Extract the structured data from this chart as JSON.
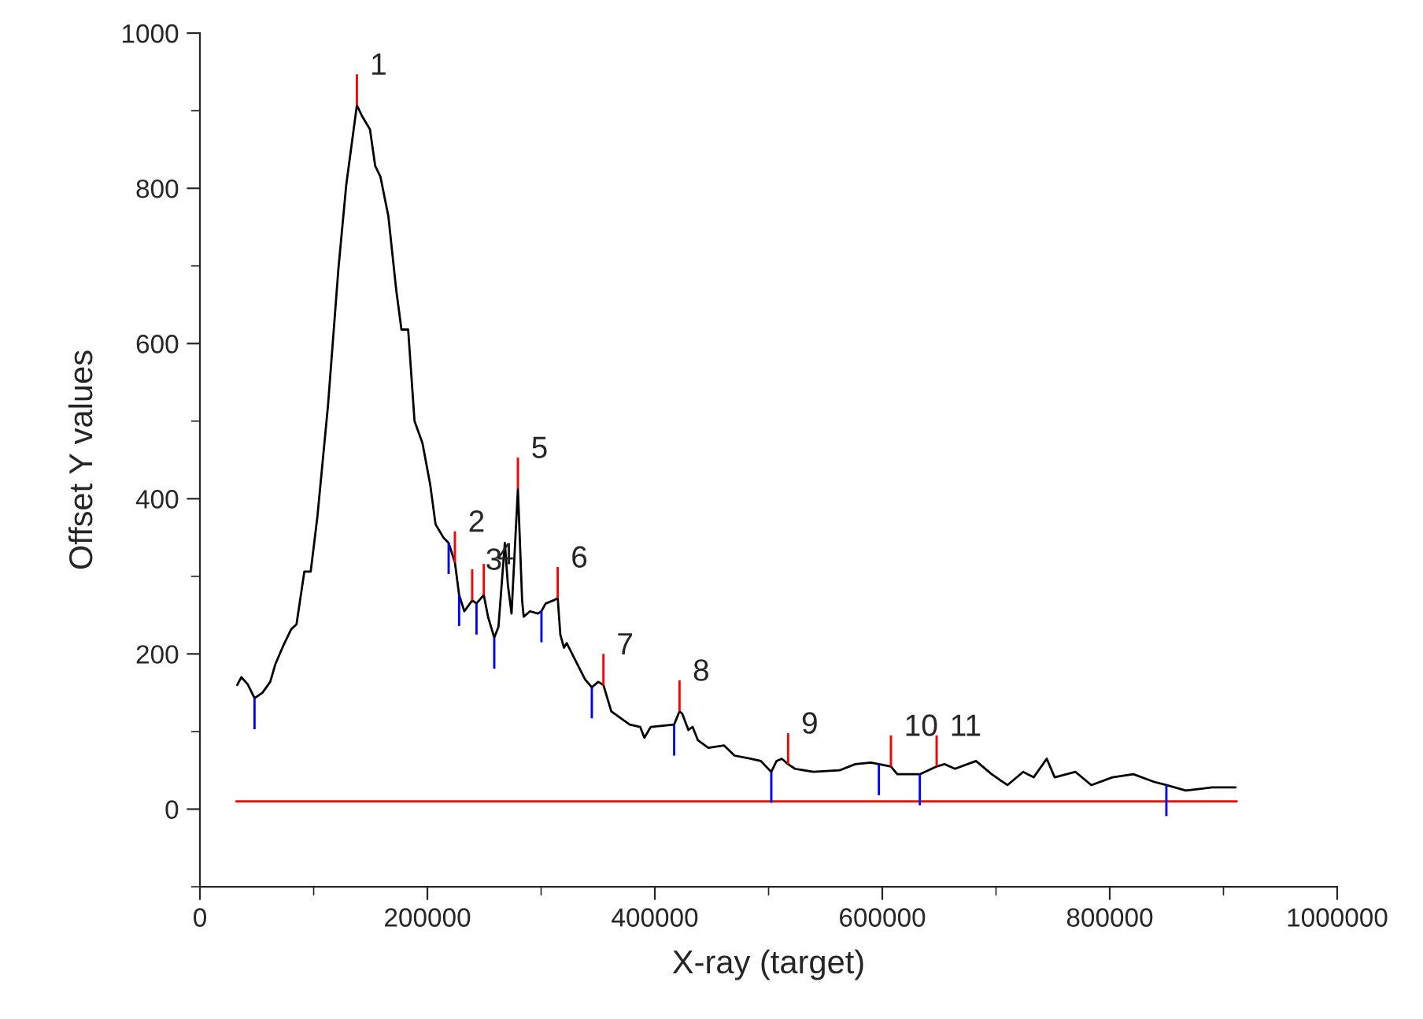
{
  "chart_data": {
    "type": "line",
    "xlabel": "X-ray (target)",
    "ylabel": "Offset Y values",
    "xlim": [
      0,
      1000000
    ],
    "xticks": [
      0,
      200000,
      400000,
      600000,
      800000,
      1000000
    ],
    "ylim": [
      -100,
      1000
    ],
    "yticks": [
      0,
      200,
      400,
      600,
      800,
      1000
    ],
    "grid": false,
    "legend": false,
    "series": [
      {
        "color": "#000000",
        "x": [
          32800,
          36400,
          42000,
          48000,
          55000,
          61800,
          66400,
          73400,
          80300,
          84900,
          91800,
          97400,
          103300,
          112600,
          121800,
          128700,
          138000,
          142600,
          149500,
          154100,
          158700,
          165700,
          172600,
          177200,
          183100,
          188700,
          195600,
          202500,
          207200,
          214100,
          218700,
          224200,
          227900,
          232500,
          239400,
          243200,
          249600,
          253300,
          258800,
          262500,
          268100,
          270800,
          274000,
          279600,
          283300,
          284700,
          290200,
          297100,
          300300,
          304000,
          310900,
          314600,
          316900,
          320100,
          322500,
          329400,
          338700,
          344600,
          350200,
          354800,
          361700,
          377900,
          387100,
          390800,
          396400,
          417000,
          421700,
          424100,
          429500,
          433200,
          437800,
          447000,
          460900,
          470100,
          484000,
          493200,
          502400,
          507000,
          511600,
          517200,
          523200,
          539400,
          562400,
          576200,
          590000,
          597000,
          607600,
          613200,
          627000,
          633000,
          647800,
          654700,
          663900,
          682400,
          696200,
          710000,
          723900,
          733100,
          744600,
          751600,
          769900,
          783800,
          802300,
          820800,
          839200,
          849800,
          866900,
          890000,
          910700
        ],
        "values": [
          160,
          170,
          161,
          143,
          150,
          164,
          187,
          211,
          232,
          238,
          306,
          306,
          377,
          520,
          697,
          805,
          907,
          893,
          876,
          829,
          815,
          764,
          669,
          618,
          618,
          500,
          472,
          418,
          367,
          350,
          343,
          318,
          276,
          255,
          269,
          265,
          276,
          248,
          221,
          235,
          343,
          289,
          252,
          413,
          269,
          248,
          255,
          252,
          255,
          265,
          269,
          272,
          225,
          208,
          214,
          194,
          167,
          157,
          164,
          160,
          126,
          109,
          106,
          92,
          106,
          109,
          126,
          123,
          102,
          106,
          89,
          79,
          82,
          69,
          65,
          62,
          48,
          62,
          65,
          58,
          52,
          48,
          50,
          58,
          60,
          58,
          55,
          45,
          45,
          45,
          55,
          58,
          52,
          62,
          45,
          31,
          48,
          41,
          65,
          41,
          48,
          31,
          41,
          45,
          35,
          31,
          24,
          28,
          28
        ]
      },
      {
        "type": "line",
        "color": "#ff0000",
        "x": [
          32000,
          911700
        ],
        "values": [
          10,
          10
        ]
      },
      {
        "type": "bar",
        "color": "#ff0000",
        "x": [
          138000,
          224200,
          239400,
          249600,
          279600,
          314600,
          354800,
          421700,
          517200,
          607600,
          647800
        ],
        "base": [
          907,
          318,
          269,
          276,
          413,
          272,
          160,
          126,
          58,
          55,
          55
        ],
        "values": [
          40,
          40,
          40,
          40,
          40,
          40,
          40,
          40,
          40,
          40,
          40
        ]
      },
      {
        "type": "bar",
        "color": "#0000ff",
        "x": [
          48000,
          218700,
          227900,
          243200,
          258800,
          300300,
          344600,
          417000,
          502400,
          597000,
          633000,
          849800
        ],
        "base": [
          143,
          343,
          276,
          265,
          221,
          255,
          157,
          109,
          48,
          58,
          45,
          31
        ],
        "values": [
          -40,
          -40,
          -40,
          -40,
          -40,
          -40,
          -40,
          -40,
          -40,
          -40,
          -40,
          -40
        ]
      }
    ],
    "annotations": [
      {
        "text": "1",
        "x": 138000,
        "y": 907
      },
      {
        "text": "2",
        "x": 224200,
        "y": 318
      },
      {
        "text": "3",
        "x": 239400,
        "y": 269
      },
      {
        "text": "4",
        "x": 249600,
        "y": 276
      },
      {
        "text": "5",
        "x": 279600,
        "y": 413
      },
      {
        "text": "6",
        "x": 314600,
        "y": 272
      },
      {
        "text": "7",
        "x": 354800,
        "y": 160
      },
      {
        "text": "8",
        "x": 421700,
        "y": 126
      },
      {
        "text": "9",
        "x": 517200,
        "y": 58
      },
      {
        "text": "10",
        "x": 607600,
        "y": 55
      },
      {
        "text": "11",
        "x": 647800,
        "y": 55
      }
    ]
  }
}
